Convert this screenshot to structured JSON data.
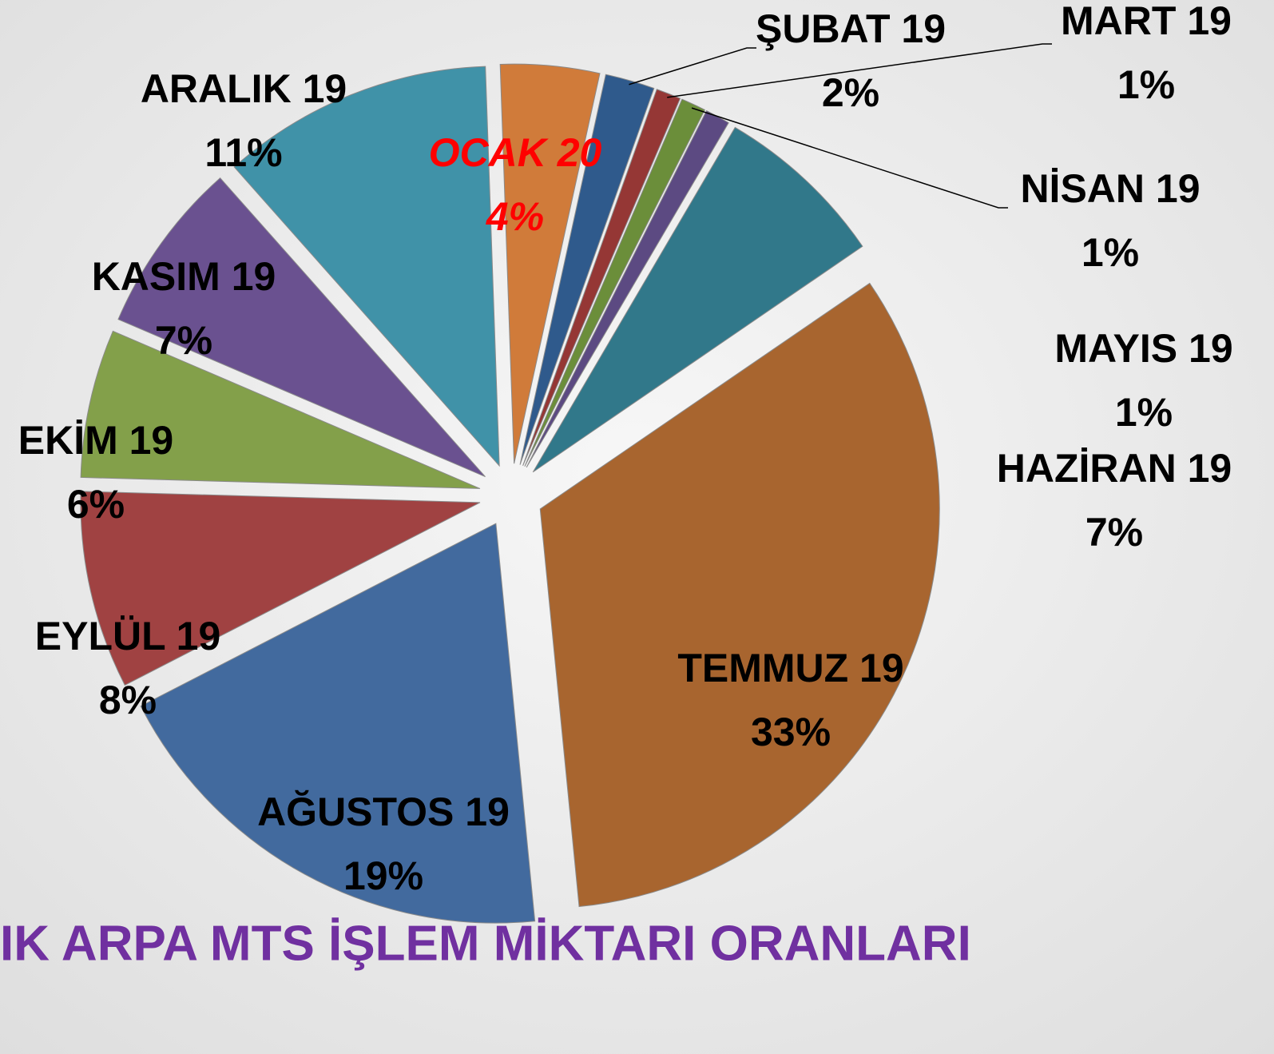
{
  "chart_data": {
    "type": "pie",
    "title": "IK ARPA MTS İŞLEM MİKTARI ORANLARI",
    "categories": [
      "OCAK 20",
      "ŞUBAT 19",
      "MART 19",
      "NİSAN 19",
      "MAYIS 19",
      "HAZİRAN 19",
      "TEMMUZ 19",
      "AĞUSTOS 19",
      "EYLÜL 19",
      "EKİM 19",
      "KASIM 19",
      "ARALIK 19"
    ],
    "values": [
      4,
      2,
      1,
      1,
      1,
      7,
      33,
      19,
      8,
      6,
      7,
      11
    ],
    "value_labels": [
      "4%",
      "2%",
      "1%",
      "1%",
      "1%",
      "7%",
      "33%",
      "19%",
      "8%",
      "6%",
      "7%",
      "11%"
    ],
    "colors": [
      "#d07b3a",
      "#2f5a8c",
      "#953735",
      "#6b8e3a",
      "#5c4a82",
      "#31788a",
      "#a8652f",
      "#426a9e",
      "#a04242",
      "#83a04a",
      "#6a5190",
      "#4092a8"
    ]
  }
}
